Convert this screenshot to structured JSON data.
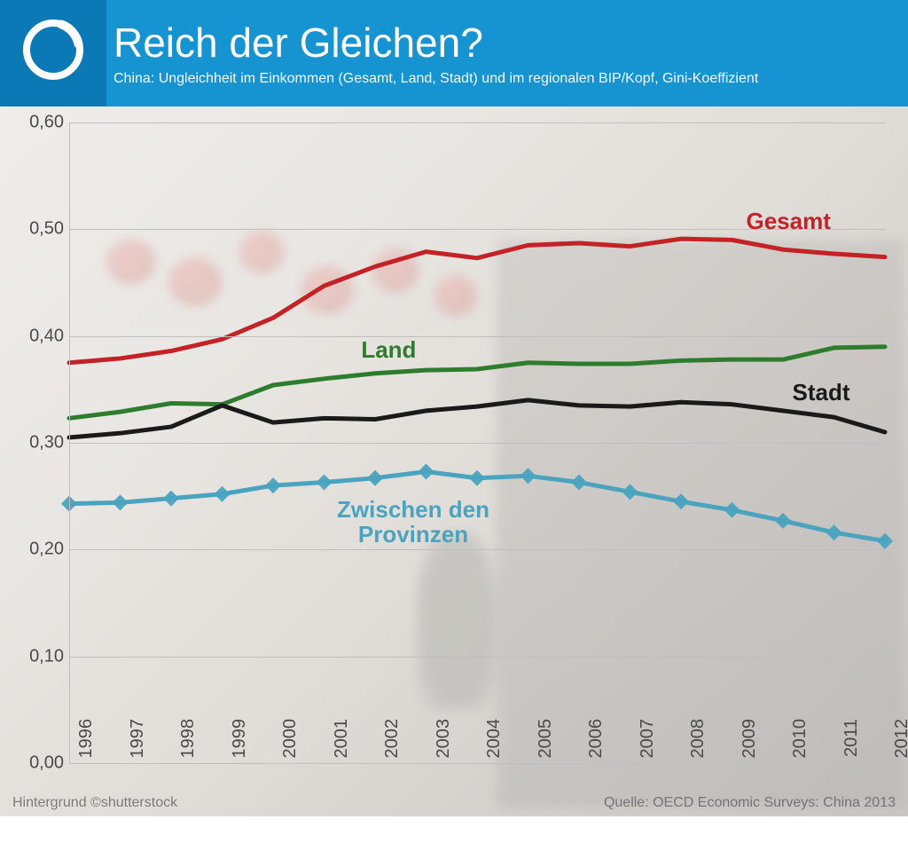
{
  "header": {
    "title": "Reich der Gleichen?",
    "subtitle": "China: Ungleichheit im Einkommen (Gesamt, Land, Stadt) und im regionalen BIP/Kopf, Gini-Koeffizient",
    "band_color": "#1694d2",
    "logo_color": "#0a79b6",
    "title_fontsize": 46,
    "subtitle_fontsize": 16,
    "text_color": "#ffffff"
  },
  "footer": {
    "left": "Hintergrund ©shutterstock",
    "right": "Quelle: OECD Economic Surveys: China 2013",
    "color": "#6a6a6a"
  },
  "chart": {
    "type": "line",
    "background_photo_tint": "#cbc4ba",
    "overlay_color": "rgba(255,255,255,0.60)",
    "grid_color": "#bfbfbf",
    "axis_label_color": "#4a4a4a",
    "axis_fontsize": 20,
    "ylim": [
      0.0,
      0.6
    ],
    "ytick_step": 0.1,
    "ytick_format": "comma-decimal-2dp",
    "x_categories": [
      "1996",
      "1997",
      "1998",
      "1999",
      "2000",
      "2001",
      "2002",
      "2003",
      "2004",
      "2005",
      "2006",
      "2007",
      "2008",
      "2009",
      "2010",
      "2011",
      "2012"
    ],
    "x_label_rotation_deg": -90,
    "line_width": 5,
    "series": [
      {
        "key": "gesamt",
        "label": "Gesamt",
        "color": "#c32327",
        "marker": "none",
        "values": [
          0.375,
          0.379,
          0.386,
          0.397,
          0.417,
          0.447,
          0.465,
          0.479,
          0.473,
          0.485,
          0.487,
          0.484,
          0.491,
          0.49,
          0.481,
          0.477,
          0.474
        ],
        "label_pos": {
          "x": 0.86,
          "y": 0.505
        }
      },
      {
        "key": "land",
        "label": "Land",
        "color": "#2e7d2e",
        "marker": "none",
        "values": [
          0.323,
          0.329,
          0.337,
          0.336,
          0.354,
          0.36,
          0.365,
          0.368,
          0.369,
          0.375,
          0.374,
          0.374,
          0.377,
          0.378,
          0.378,
          0.389,
          0.39
        ],
        "label_pos": {
          "x": 0.37,
          "y": 0.385
        }
      },
      {
        "key": "stadt",
        "label": "Stadt",
        "color": "#1a1a1a",
        "marker": "none",
        "values": [
          0.305,
          0.309,
          0.315,
          0.335,
          0.319,
          0.323,
          0.322,
          0.33,
          0.334,
          0.34,
          0.335,
          0.334,
          0.338,
          0.336,
          0.33,
          0.324,
          0.31
        ],
        "label_pos": {
          "x": 0.9,
          "y": 0.345
        }
      },
      {
        "key": "provinzen",
        "label": "Zwischen den\nProvinzen",
        "color": "#4aa3bf",
        "marker": "diamond",
        "marker_size": 9,
        "values": [
          0.243,
          0.244,
          0.248,
          0.252,
          0.26,
          0.263,
          0.267,
          0.273,
          0.267,
          0.269,
          0.263,
          0.254,
          0.245,
          0.237,
          0.227,
          0.216,
          0.208
        ],
        "label_pos": {
          "x": 0.4,
          "y": 0.235
        }
      }
    ]
  }
}
